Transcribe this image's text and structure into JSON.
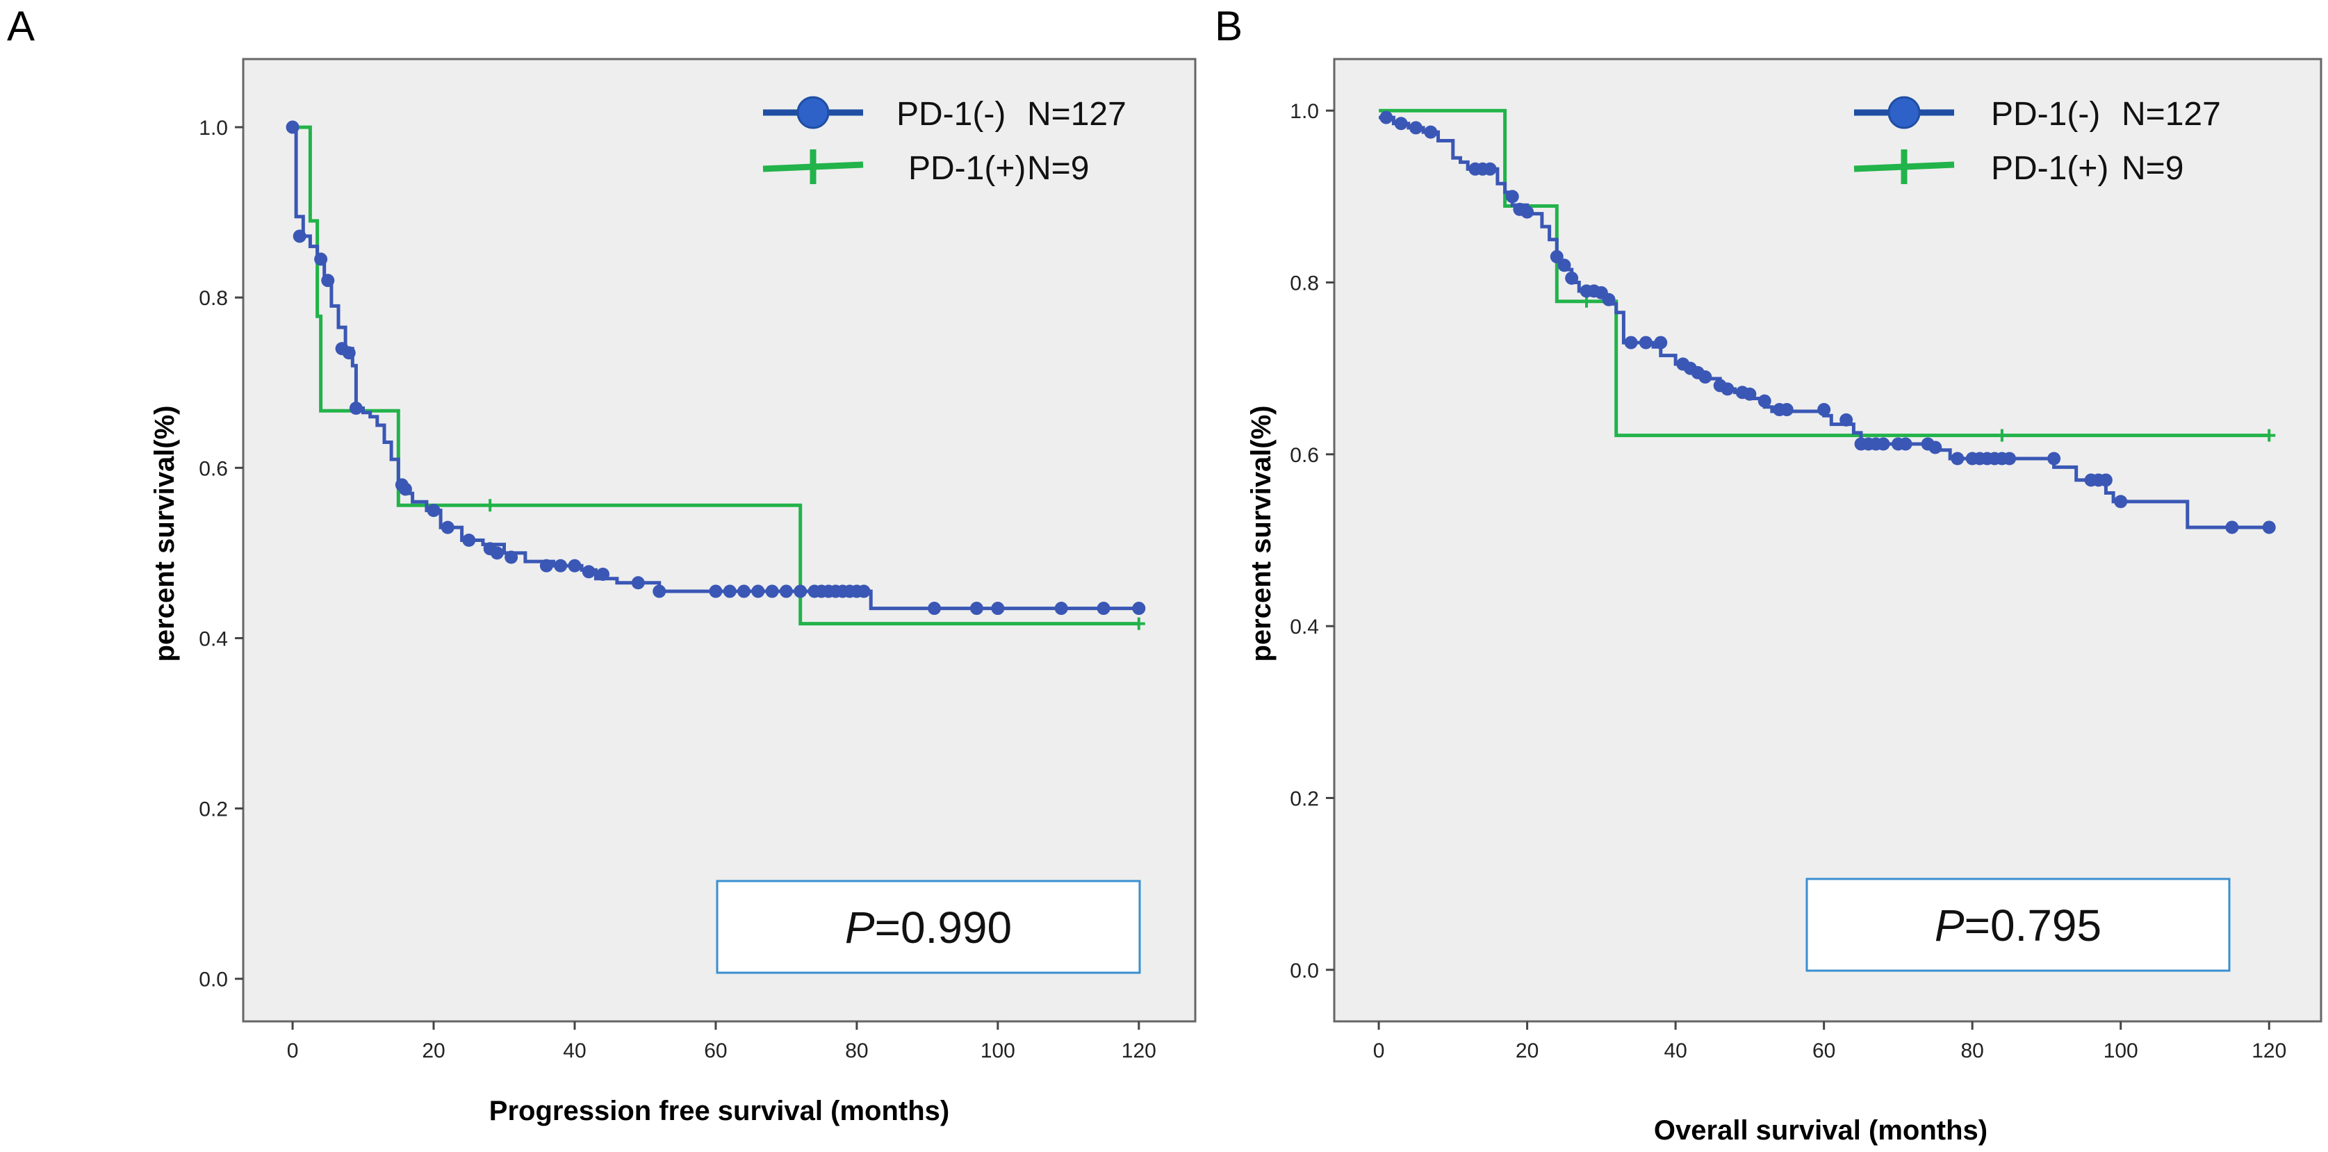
{
  "chart_data": [
    {
      "panel": "A",
      "type": "line",
      "subtype": "kaplan-meier",
      "xlabel": "Progression free survival (months)",
      "ylabel": "percent survival(%)",
      "xlim": [
        -7,
        128
      ],
      "ylim": [
        -0.05,
        1.08
      ],
      "xticks": [
        0,
        20,
        40,
        60,
        80,
        100,
        120
      ],
      "yticks": [
        0.0,
        0.2,
        0.4,
        0.6,
        0.8,
        1.0
      ],
      "ytick_labels": [
        "0.0",
        "0.2",
        "0.4",
        "0.6",
        "0.8",
        "1.0"
      ],
      "legend": [
        {
          "label": "PD-1(-)",
          "n": "N=127",
          "color": "#3a57b5",
          "marker": "circle"
        },
        {
          "label": "PD-1(+)",
          "n": "N=9",
          "color": "#22b34a",
          "marker": "plus"
        }
      ],
      "pvalue": {
        "prefix": "P",
        "value": "=0.990"
      },
      "series": [
        {
          "name": "PD-1(-)",
          "color": "#3a57b5",
          "steps": [
            [
              0,
              1.0
            ],
            [
              0.5,
              0.895
            ],
            [
              1.5,
              0.872
            ],
            [
              2.5,
              0.86
            ],
            [
              3.5,
              0.845
            ],
            [
              4.5,
              0.82
            ],
            [
              5.5,
              0.79
            ],
            [
              6.5,
              0.765
            ],
            [
              7.5,
              0.74
            ],
            [
              8.5,
              0.72
            ],
            [
              9,
              0.67
            ],
            [
              10,
              0.665
            ],
            [
              11,
              0.66
            ],
            [
              12,
              0.65
            ],
            [
              13,
              0.63
            ],
            [
              14,
              0.61
            ],
            [
              15,
              0.58
            ],
            [
              16,
              0.57
            ],
            [
              17,
              0.56
            ],
            [
              19,
              0.55
            ],
            [
              21,
              0.53
            ],
            [
              24,
              0.515
            ],
            [
              27,
              0.51
            ],
            [
              30,
              0.5
            ],
            [
              33,
              0.49
            ],
            [
              37,
              0.485
            ],
            [
              41,
              0.48
            ],
            [
              43,
              0.47
            ],
            [
              46,
              0.465
            ],
            [
              52,
              0.455
            ],
            [
              82,
              0.435
            ],
            [
              120,
              0.435
            ]
          ],
          "censored": [
            [
              0,
              1.0
            ],
            [
              1,
              0.872
            ],
            [
              4,
              0.845
            ],
            [
              5,
              0.82
            ],
            [
              7,
              0.74
            ],
            [
              8,
              0.735
            ],
            [
              9,
              0.67
            ],
            [
              15.5,
              0.58
            ],
            [
              16,
              0.575
            ],
            [
              20,
              0.55
            ],
            [
              22,
              0.53
            ],
            [
              25,
              0.515
            ],
            [
              28,
              0.505
            ],
            [
              29,
              0.5
            ],
            [
              31,
              0.495
            ],
            [
              36,
              0.485
            ],
            [
              38,
              0.485
            ],
            [
              40,
              0.485
            ],
            [
              42,
              0.478
            ],
            [
              44,
              0.475
            ],
            [
              49,
              0.465
            ],
            [
              52,
              0.455
            ],
            [
              60,
              0.455
            ],
            [
              62,
              0.455
            ],
            [
              64,
              0.455
            ],
            [
              66,
              0.455
            ],
            [
              68,
              0.455
            ],
            [
              70,
              0.455
            ],
            [
              72,
              0.455
            ],
            [
              74,
              0.455
            ],
            [
              75,
              0.455
            ],
            [
              76,
              0.455
            ],
            [
              77,
              0.455
            ],
            [
              78,
              0.455
            ],
            [
              79,
              0.455
            ],
            [
              80,
              0.455
            ],
            [
              81,
              0.455
            ],
            [
              91,
              0.435
            ],
            [
              97,
              0.435
            ],
            [
              100,
              0.435
            ],
            [
              109,
              0.435
            ],
            [
              115,
              0.435
            ],
            [
              120,
              0.435
            ]
          ]
        },
        {
          "name": "PD-1(+)",
          "color": "#22b34a",
          "steps": [
            [
              0,
              1.0
            ],
            [
              2.5,
              0.89
            ],
            [
              3.5,
              0.778
            ],
            [
              4,
              0.667
            ],
            [
              15,
              0.556
            ],
            [
              72,
              0.417
            ],
            [
              120,
              0.417
            ]
          ],
          "censored": [
            [
              28,
              0.556
            ],
            [
              120,
              0.417
            ]
          ]
        }
      ]
    },
    {
      "panel": "B",
      "type": "line",
      "subtype": "kaplan-meier",
      "xlabel": "Overall survival (months)",
      "ylabel": "percent survival(%)",
      "xlim": [
        -6,
        127
      ],
      "ylim": [
        -0.06,
        1.06
      ],
      "xticks": [
        0,
        20,
        40,
        60,
        80,
        100,
        120
      ],
      "yticks": [
        0.0,
        0.2,
        0.4,
        0.6,
        0.8,
        1.0
      ],
      "ytick_labels": [
        "0.0",
        "0.2",
        "0.4",
        "0.6",
        "0.8",
        "1.0"
      ],
      "legend": [
        {
          "label": "PD-1(-)",
          "n": "N=127",
          "color": "#3a57b5",
          "marker": "circle"
        },
        {
          "label": "PD-1(+)",
          "n": "N=9",
          "color": "#22b34a",
          "marker": "plus"
        }
      ],
      "pvalue": {
        "prefix": "P",
        "value": "=0.795"
      },
      "series": [
        {
          "name": "PD-1(-)",
          "color": "#3a57b5",
          "steps": [
            [
              0,
              0.992
            ],
            [
              2,
              0.985
            ],
            [
              4,
              0.98
            ],
            [
              6,
              0.975
            ],
            [
              8,
              0.965
            ],
            [
              10,
              0.945
            ],
            [
              11,
              0.94
            ],
            [
              12,
              0.932
            ],
            [
              16,
              0.915
            ],
            [
              17,
              0.905
            ],
            [
              18,
              0.89
            ],
            [
              20,
              0.88
            ],
            [
              22,
              0.865
            ],
            [
              23,
              0.85
            ],
            [
              24,
              0.825
            ],
            [
              25,
              0.815
            ],
            [
              26,
              0.8
            ],
            [
              27,
              0.79
            ],
            [
              30,
              0.785
            ],
            [
              31,
              0.775
            ],
            [
              32,
              0.765
            ],
            [
              33,
              0.73
            ],
            [
              37,
              0.725
            ],
            [
              38,
              0.715
            ],
            [
              40,
              0.705
            ],
            [
              42,
              0.695
            ],
            [
              44,
              0.688
            ],
            [
              46,
              0.676
            ],
            [
              48,
              0.672
            ],
            [
              50,
              0.665
            ],
            [
              52,
              0.655
            ],
            [
              53,
              0.65
            ],
            [
              60,
              0.645
            ],
            [
              61,
              0.635
            ],
            [
              64,
              0.625
            ],
            [
              65,
              0.612
            ],
            [
              75,
              0.605
            ],
            [
              77,
              0.595
            ],
            [
              91,
              0.585
            ],
            [
              94,
              0.57
            ],
            [
              98,
              0.555
            ],
            [
              99,
              0.545
            ],
            [
              109,
              0.515
            ],
            [
              120,
              0.515
            ]
          ],
          "censored": [
            [
              1,
              0.992
            ],
            [
              3,
              0.985
            ],
            [
              5,
              0.98
            ],
            [
              7,
              0.975
            ],
            [
              13,
              0.932
            ],
            [
              14,
              0.932
            ],
            [
              15,
              0.932
            ],
            [
              18,
              0.9
            ],
            [
              19,
              0.885
            ],
            [
              20,
              0.882
            ],
            [
              24,
              0.83
            ],
            [
              25,
              0.82
            ],
            [
              26,
              0.805
            ],
            [
              28,
              0.79
            ],
            [
              29,
              0.79
            ],
            [
              30,
              0.788
            ],
            [
              31,
              0.78
            ],
            [
              34,
              0.73
            ],
            [
              36,
              0.73
            ],
            [
              38,
              0.73
            ],
            [
              41,
              0.705
            ],
            [
              42,
              0.7
            ],
            [
              43,
              0.695
            ],
            [
              44,
              0.69
            ],
            [
              46,
              0.68
            ],
            [
              47,
              0.676
            ],
            [
              49,
              0.672
            ],
            [
              50,
              0.67
            ],
            [
              52,
              0.662
            ],
            [
              54,
              0.652
            ],
            [
              55,
              0.652
            ],
            [
              60,
              0.652
            ],
            [
              63,
              0.64
            ],
            [
              65,
              0.612
            ],
            [
              66,
              0.612
            ],
            [
              67,
              0.612
            ],
            [
              68,
              0.612
            ],
            [
              70,
              0.612
            ],
            [
              71,
              0.612
            ],
            [
              74,
              0.612
            ],
            [
              75,
              0.608
            ],
            [
              78,
              0.595
            ],
            [
              80,
              0.595
            ],
            [
              81,
              0.595
            ],
            [
              82,
              0.595
            ],
            [
              83,
              0.595
            ],
            [
              84,
              0.595
            ],
            [
              85,
              0.595
            ],
            [
              91,
              0.595
            ],
            [
              96,
              0.57
            ],
            [
              97,
              0.57
            ],
            [
              98,
              0.57
            ],
            [
              100,
              0.545
            ],
            [
              115,
              0.515
            ],
            [
              120,
              0.515
            ]
          ]
        },
        {
          "name": "PD-1(+)",
          "color": "#22b34a",
          "steps": [
            [
              0,
              1.0
            ],
            [
              17,
              0.889
            ],
            [
              24,
              0.778
            ],
            [
              32,
              0.622
            ],
            [
              120,
              0.622
            ]
          ],
          "censored": [
            [
              28,
              0.778
            ],
            [
              84,
              0.622
            ],
            [
              120,
              0.622
            ]
          ]
        }
      ]
    }
  ]
}
